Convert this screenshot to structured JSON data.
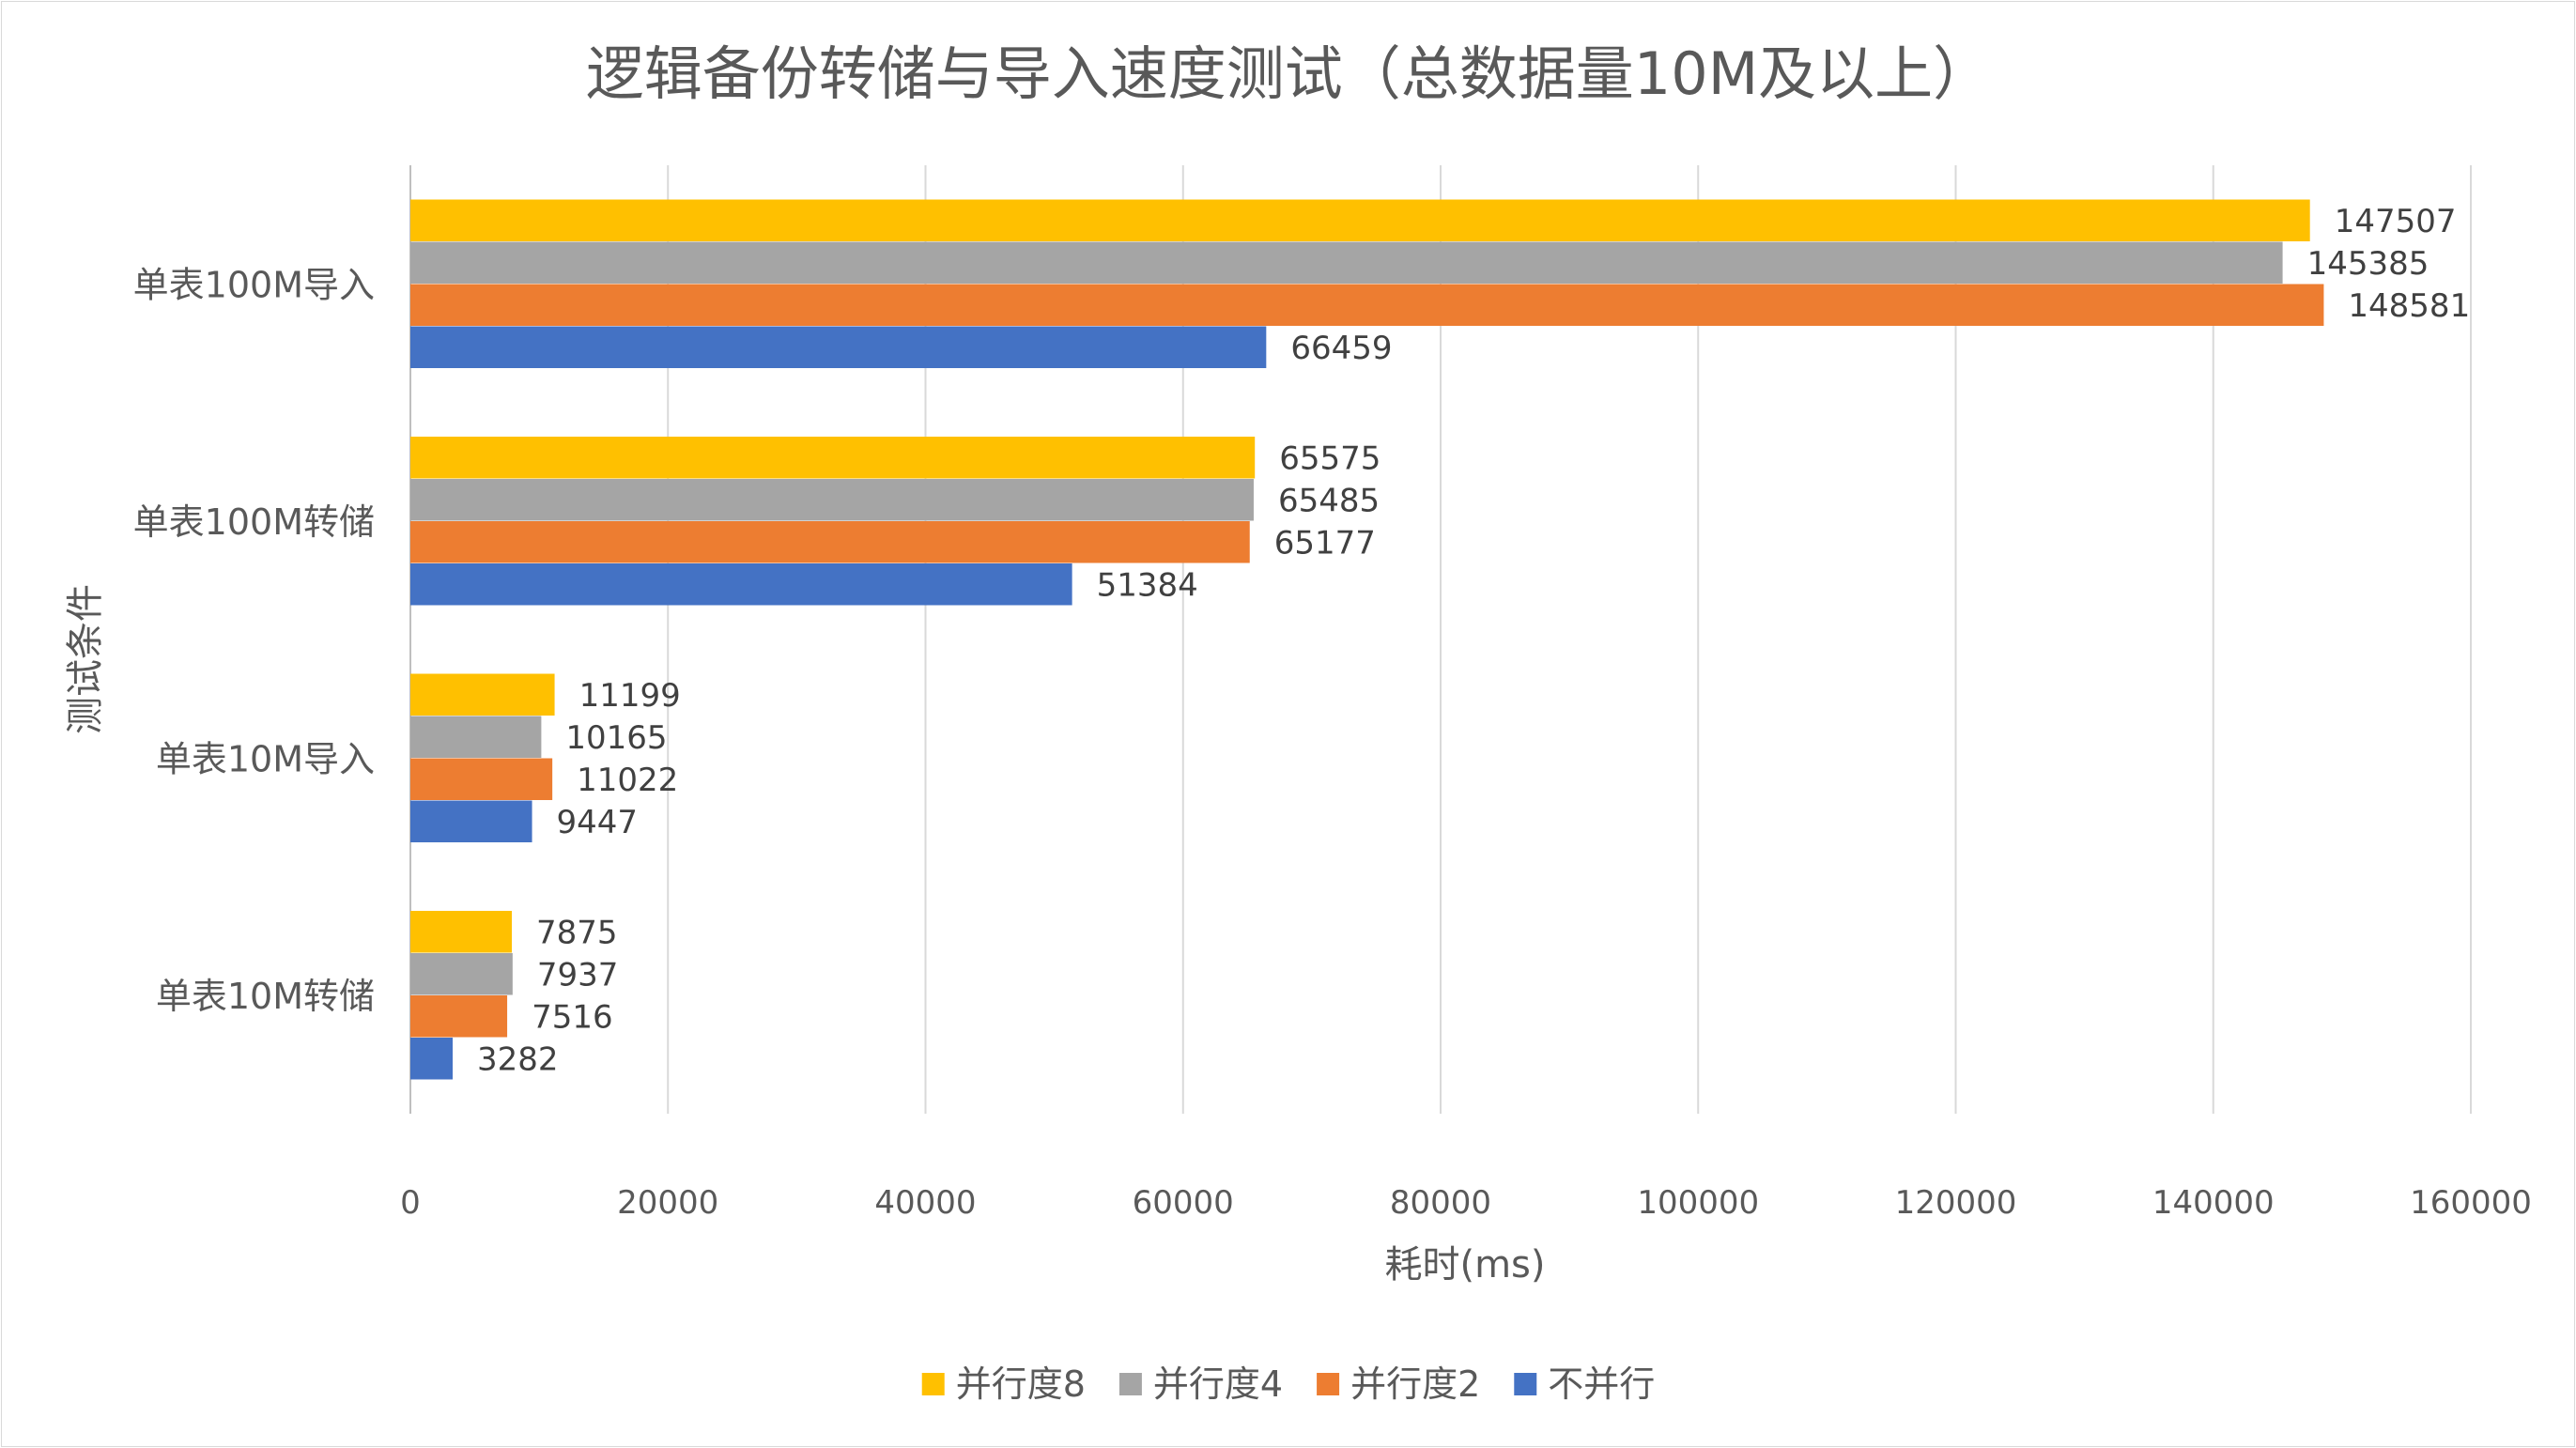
{
  "chart_data": {
    "type": "bar",
    "orientation": "horizontal",
    "title": "逻辑备份转储与导入速度测试（总数据量10M及以上）",
    "xlabel": "耗时(ms)",
    "ylabel": "测试条件",
    "xlim": [
      0,
      160000
    ],
    "xticks": [
      0,
      20000,
      40000,
      60000,
      80000,
      100000,
      120000,
      140000,
      160000
    ],
    "grid": true,
    "legend_position": "bottom",
    "categories": [
      "单表100M导入",
      "单表100M转储",
      "单表10M导入",
      "单表10M转储"
    ],
    "series": [
      {
        "name": "并行度8",
        "color": "#FFC000",
        "values": [
          147507,
          65575,
          11199,
          7875
        ]
      },
      {
        "name": "并行度4",
        "color": "#A5A5A5",
        "values": [
          145385,
          65485,
          10165,
          7937
        ]
      },
      {
        "name": "并行度2",
        "color": "#ED7D31",
        "values": [
          148581,
          65177,
          11022,
          7516
        ]
      },
      {
        "name": "不并行",
        "color": "#4472C4",
        "values": [
          66459,
          51384,
          9447,
          3282
        ]
      }
    ]
  }
}
